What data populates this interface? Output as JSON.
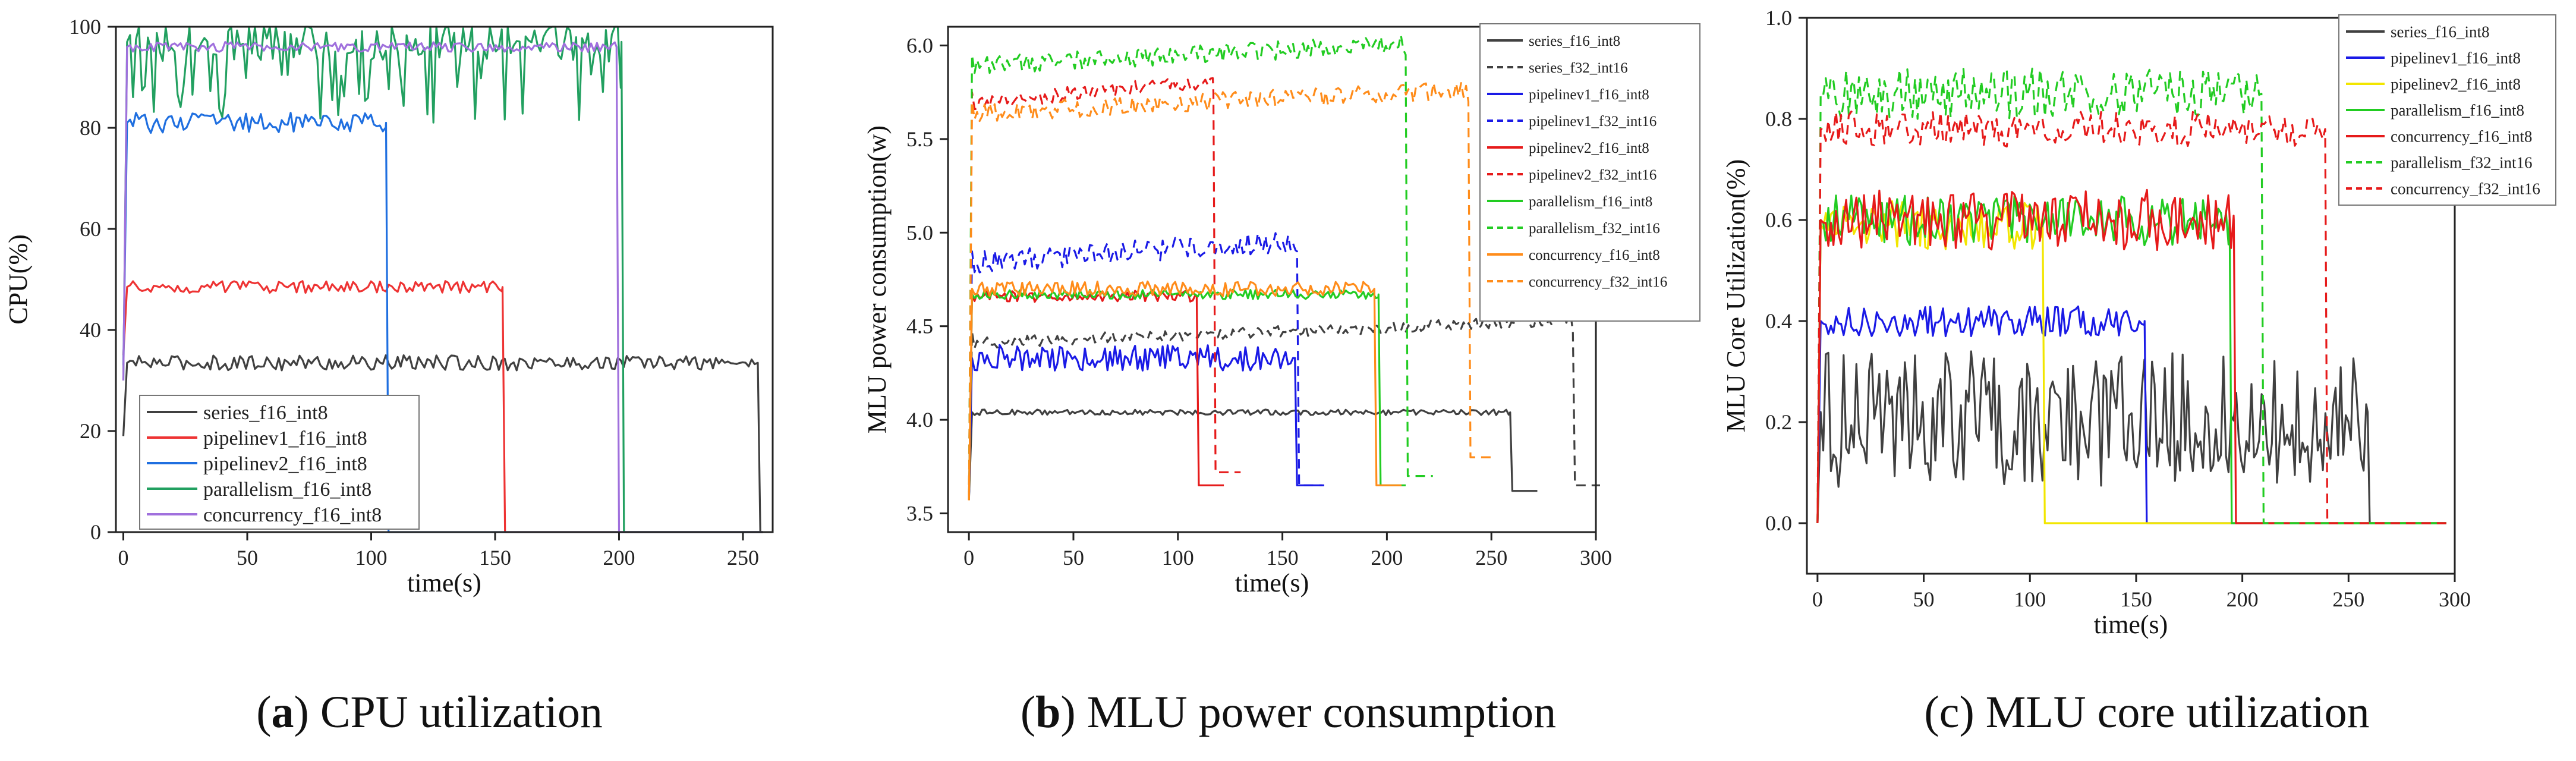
{
  "chart_data": [
    {
      "id": "a",
      "type": "line",
      "caption_letter": "a",
      "caption_text": "CPU utilization",
      "xlabel": "time(s)",
      "ylabel": "CPU(%)",
      "xlim": [
        -3,
        262
      ],
      "ylim": [
        0,
        100
      ],
      "xticks": [
        0,
        50,
        100,
        150,
        200,
        250
      ],
      "yticks": [
        0,
        20,
        40,
        60,
        80,
        100
      ],
      "tick_labels_x": [
        "0",
        "50",
        "100",
        "150",
        "200",
        "250"
      ],
      "tick_labels_y": [
        "0",
        "20",
        "40",
        "60",
        "80",
        "100"
      ],
      "legend_position": "bottom-left",
      "series": [
        {
          "name": "series_f16_int8",
          "color": "#404040",
          "dash": "solid",
          "x_end": 257,
          "rise_to": 19,
          "level": 33.5,
          "noise": 1.5,
          "drop_to": 0
        },
        {
          "name": "pipelinev1_f16_int8",
          "color": "#ee3333",
          "dash": "solid",
          "x_end": 154,
          "rise_to": 35,
          "level": 48.5,
          "noise": 1.2,
          "drop_to": 0
        },
        {
          "name": "pipelinev2_f16_int8",
          "color": "#1f6fe0",
          "dash": "solid",
          "x_end": 107,
          "rise_to": 33,
          "level": 81,
          "noise": 2.0,
          "drop_to": 0
        },
        {
          "name": "parallelism_f16_int8",
          "color": "#22a060",
          "dash": "solid",
          "x_end": 202,
          "rise_to": 30,
          "level": 97,
          "noise": 4.0,
          "drop_to": 0
        },
        {
          "name": "concurrency_f16_int8",
          "color": "#a070dd",
          "dash": "solid",
          "x_end": 200,
          "rise_to": 30,
          "level": 96,
          "noise": 1.0,
          "drop_to": 0
        }
      ]
    },
    {
      "id": "b",
      "type": "line",
      "caption_letter": "b",
      "caption_text": "MLU power consumption",
      "xlabel": "time(s)",
      "ylabel": "MLU power consumption(w)",
      "xlim": [
        -10,
        300
      ],
      "ylim": [
        3.4,
        6.1
      ],
      "xticks": [
        0,
        50,
        100,
        150,
        200,
        250,
        300
      ],
      "yticks": [
        3.5,
        4.0,
        4.5,
        5.0,
        5.5,
        6.0
      ],
      "tick_labels_x": [
        "0",
        "50",
        "100",
        "150",
        "200",
        "250",
        "300"
      ],
      "tick_labels_y": [
        "3.5",
        "4.0",
        "4.5",
        "5.0",
        "5.5",
        "6.0"
      ],
      "legend_position": "top-right",
      "series": [
        {
          "name": "series_f16_int8",
          "color": "#404040",
          "dash": "solid",
          "x_end": 260,
          "rise_to": 3.57,
          "level": 4.04,
          "noise": 0.015,
          "drop_to": 3.62
        },
        {
          "name": "series_f32_int16",
          "color": "#404040",
          "dash": "dashed",
          "x_end": 290,
          "rise_to": 3.57,
          "level": 4.47,
          "noise": 0.03,
          "drop_to": 3.65
        },
        {
          "name": "pipelinev1_f16_int8",
          "color": "#1a1ae6",
          "dash": "solid",
          "x_end": 157,
          "rise_to": 3.57,
          "level": 4.33,
          "noise": 0.07,
          "drop_to": 3.65
        },
        {
          "name": "pipelinev1_f32_int16",
          "color": "#1a1ae6",
          "dash": "dashed",
          "x_end": 158,
          "rise_to": 3.57,
          "level": 4.9,
          "noise": 0.06,
          "drop_to": 3.65
        },
        {
          "name": "pipelinev2_f16_int8",
          "color": "#e61a1a",
          "dash": "solid",
          "x_end": 110,
          "rise_to": 3.57,
          "level": 4.66,
          "noise": 0.03,
          "drop_to": 3.65
        },
        {
          "name": "pipelinev2_f32_int16",
          "color": "#e61a1a",
          "dash": "dashed",
          "x_end": 118,
          "rise_to": 3.57,
          "level": 5.75,
          "noise": 0.04,
          "drop_to": 3.72
        },
        {
          "name": "parallelism_f16_int8",
          "color": "#22cc22",
          "dash": "solid",
          "x_end": 197,
          "rise_to": 3.57,
          "level": 4.67,
          "noise": 0.025,
          "drop_to": 3.65
        },
        {
          "name": "parallelism_f32_int16",
          "color": "#22cc22",
          "dash": "dashed",
          "x_end": 210,
          "rise_to": 3.57,
          "level": 5.95,
          "noise": 0.05,
          "drop_to": 3.7
        },
        {
          "name": "concurrency_f16_int8",
          "color": "#ff8c1a",
          "dash": "solid",
          "x_end": 195,
          "rise_to": 3.57,
          "level": 4.7,
          "noise": 0.04,
          "drop_to": 3.65
        },
        {
          "name": "concurrency_f32_int16",
          "color": "#ff8c1a",
          "dash": "dashed",
          "x_end": 240,
          "rise_to": 3.57,
          "level": 5.7,
          "noise": 0.05,
          "drop_to": 3.8
        }
      ]
    },
    {
      "id": "c",
      "type": "line",
      "caption_letter": "",
      "caption_text": "(c) MLU core utilization",
      "xlabel": "time(s)",
      "ylabel": "MLU Core Utilization(%)",
      "xlim": [
        -5,
        300
      ],
      "ylim": [
        -0.1,
        1.0
      ],
      "xticks": [
        0,
        50,
        100,
        150,
        200,
        250,
        300
      ],
      "yticks": [
        0.0,
        0.2,
        0.4,
        0.6,
        0.8,
        1.0
      ],
      "tick_labels_x": [
        "0",
        "50",
        "100",
        "150",
        "200",
        "250",
        "300"
      ],
      "tick_labels_y": [
        "0.0",
        "0.2",
        "0.4",
        "0.6",
        "0.8",
        "1.0"
      ],
      "legend_position": "top-right",
      "series": [
        {
          "name": "series_f16_int8",
          "color": "#404040",
          "dash": "solid",
          "x_end": 260,
          "rise_to": 0.0,
          "level": 0.22,
          "noise": 0.12,
          "drop_to": 0.0
        },
        {
          "name": "pipelinev1_f16_int8",
          "color": "#1a1ae6",
          "dash": "solid",
          "x_end": 155,
          "rise_to": 0.0,
          "level": 0.4,
          "noise": 0.03,
          "drop_to": 0.0
        },
        {
          "name": "pipelinev2_f16_int8",
          "color": "#f2e600",
          "dash": "solid",
          "x_end": 107,
          "rise_to": 0.0,
          "level": 0.59,
          "noise": 0.05,
          "drop_to": 0.0
        },
        {
          "name": "parallelism_f16_int8",
          "color": "#22cc22",
          "dash": "solid",
          "x_end": 195,
          "rise_to": 0.0,
          "level": 0.6,
          "noise": 0.05,
          "drop_to": 0.0
        },
        {
          "name": "concurrency_f16_int8",
          "color": "#e61a1a",
          "dash": "solid",
          "x_end": 197,
          "rise_to": 0.0,
          "level": 0.6,
          "noise": 0.06,
          "drop_to": 0.0
        },
        {
          "name": "parallelism_f32_int16",
          "color": "#22cc22",
          "dash": "dashed",
          "x_end": 210,
          "rise_to": 0.0,
          "level": 0.85,
          "noise": 0.05,
          "drop_to": 0.0
        },
        {
          "name": "concurrency_f32_int16",
          "color": "#e61a1a",
          "dash": "dashed",
          "x_end": 240,
          "rise_to": 0.0,
          "level": 0.78,
          "noise": 0.035,
          "drop_to": 0.0
        }
      ]
    }
  ]
}
